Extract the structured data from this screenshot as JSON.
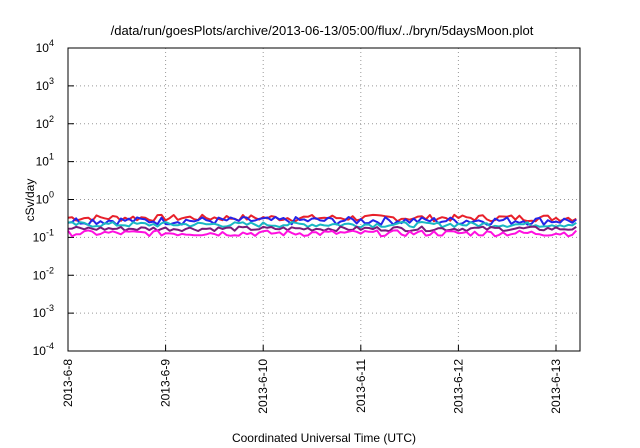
{
  "chart_data": {
    "type": "line",
    "title": "/data/run/goesPlots/archive/2013-06-13/05:00/flux/../bryn/5daysMoon.plot",
    "xlabel": "Coordinated Universal Time (UTC)",
    "ylabel": "cSv/day",
    "y_scale": "log",
    "ylim": [
      0.0001,
      10000
    ],
    "xlim": [
      "2013-06-08 00:00",
      "2013-06-13 05:00"
    ],
    "grid": true,
    "legend": "none",
    "x_ticks": [
      "2013-6-8",
      "2013-6-9",
      "2013-6-10",
      "2013-6-11",
      "2013-6-12",
      "2013-6-13"
    ],
    "y_ticks": [
      {
        "base": "10",
        "exp": "4"
      },
      {
        "base": "10",
        "exp": "3"
      },
      {
        "base": "10",
        "exp": "2"
      },
      {
        "base": "10",
        "exp": "1"
      },
      {
        "base": "10",
        "exp": "0"
      },
      {
        "base": "10",
        "exp": "-1"
      },
      {
        "base": "10",
        "exp": "-2"
      },
      {
        "base": "10",
        "exp": "-3"
      },
      {
        "base": "10",
        "exp": "-4"
      }
    ],
    "series": [
      {
        "color": "#e8202a",
        "level": 0.33,
        "amp": 0.1
      },
      {
        "color": "#2424e8",
        "level": 0.28,
        "amp": 0.12
      },
      {
        "color": "#19b7c4",
        "level": 0.22,
        "amp": 0.08
      },
      {
        "color": "#7a1a7a",
        "level": 0.17,
        "amp": 0.07
      },
      {
        "color": "#ff10e0",
        "level": 0.13,
        "amp": 0.09
      }
    ]
  }
}
